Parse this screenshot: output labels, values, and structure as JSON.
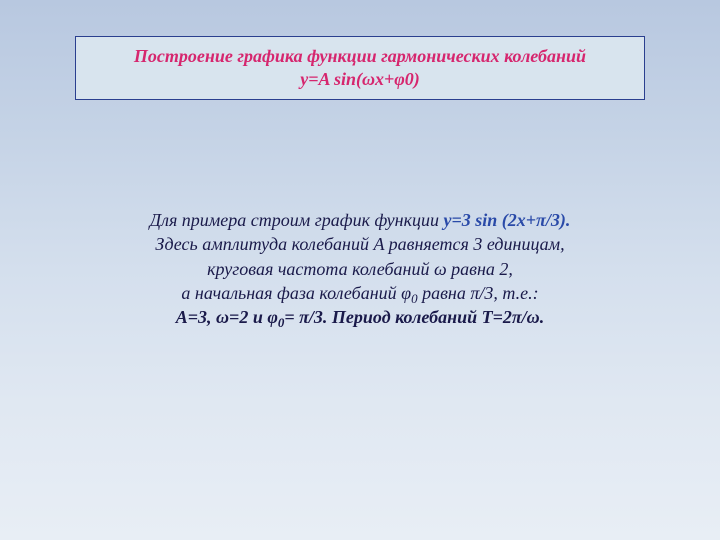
{
  "title": {
    "line1": "Построение графика функции гармонических колебаний",
    "line2": "y=A sin(ωx+φ0)",
    "color": "#d6266e",
    "fontsize": 18,
    "box_bg": "#d8e4ee",
    "box_border": "#2a3f8f"
  },
  "body": {
    "color_normal": "#1a1a4a",
    "color_highlight": "#2a4aa8",
    "fontsize": 18,
    "lines": [
      {
        "plain": "Для примера строим график функции ",
        "highlight": "y=3 sin (2x+π/3)."
      },
      {
        "plain": "Здесь амплитуда колебаний A равняется 3 единицам,"
      },
      {
        "plain": "круговая частота колебаний ω равна 2,"
      },
      {
        "plain_html": "а начальная фаза колебаний φ<span class=\"sub\">0</span> равна π/3, т.е.:"
      },
      {
        "bold_html": "A=3, ω=2 и φ<span class=\"sub\">0</span>= π/3.  Период колебаний T=2π/ω."
      }
    ]
  },
  "background": {
    "gradient_top": "#b8c8e0",
    "gradient_bottom": "#e8eef5"
  }
}
